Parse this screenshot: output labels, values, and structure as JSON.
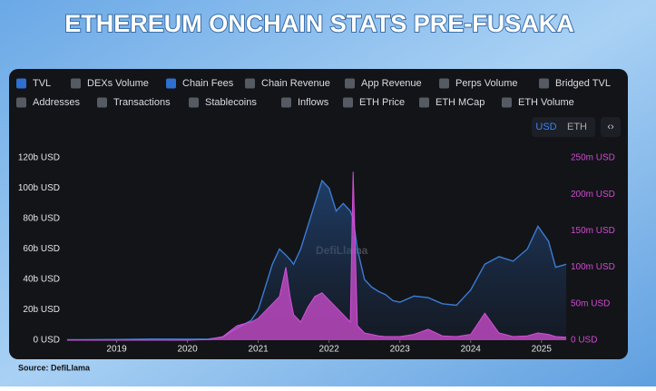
{
  "chart_data": {
    "type": "area",
    "title": "ETHEREUM ONCHAIN STATS PRE-FUSAKA",
    "watermark": "DefiLlama",
    "source": "Source: DefiLlama",
    "toggles": [
      {
        "label": "TVL",
        "checked": true
      },
      {
        "label": "DEXs Volume",
        "checked": false
      },
      {
        "label": "Chain Fees",
        "checked": true
      },
      {
        "label": "Chain Revenue",
        "checked": false
      },
      {
        "label": "App Revenue",
        "checked": false
      },
      {
        "label": "Perps Volume",
        "checked": false
      },
      {
        "label": "Bridged TVL",
        "checked": false
      },
      {
        "label": "Addresses",
        "checked": false
      },
      {
        "label": "Transactions",
        "checked": false
      },
      {
        "label": "Stablecoins",
        "checked": false
      },
      {
        "label": "Inflows",
        "checked": false
      },
      {
        "label": "ETH Price",
        "checked": false
      },
      {
        "label": "ETH MCap",
        "checked": false
      },
      {
        "label": "ETH Volume",
        "checked": false
      }
    ],
    "currency_buttons": [
      "USD",
      "ETH"
    ],
    "x": [
      2018.3,
      2018.5,
      2019,
      2019.5,
      2020,
      2020.3,
      2020.5,
      2020.7,
      2020.9,
      2021,
      2021.1,
      2021.2,
      2021.3,
      2021.39,
      2021.45,
      2021.5,
      2021.6,
      2021.7,
      2021.8,
      2021.9,
      2022,
      2022.1,
      2022.2,
      2022.3,
      2022.34,
      2022.4,
      2022.5,
      2022.6,
      2022.7,
      2022.8,
      2022.9,
      2023,
      2023.2,
      2023.4,
      2023.6,
      2023.8,
      2024,
      2024.2,
      2024.4,
      2024.6,
      2024.8,
      2024.95,
      2025.1,
      2025.2,
      2025.35
    ],
    "series": [
      {
        "name": "TVL",
        "color": "#3b7bd4",
        "values": [
          0.3,
          0.3,
          0.5,
          0.8,
          0.7,
          0.8,
          2,
          8,
          13,
          20,
          35,
          50,
          60,
          56,
          53,
          50,
          60,
          75,
          90,
          105,
          100,
          85,
          90,
          85,
          80,
          60,
          40,
          35,
          32,
          30,
          26,
          25,
          29,
          28,
          24,
          23,
          33,
          50,
          55,
          52,
          60,
          75,
          65,
          48,
          50
        ]
      },
      {
        "name": "Chain Fees",
        "color": "#d24fd4",
        "axis": "y2",
        "values": [
          0,
          0,
          0,
          0,
          0,
          1,
          5,
          20,
          25,
          30,
          40,
          50,
          60,
          100,
          60,
          35,
          25,
          45,
          60,
          65,
          55,
          45,
          35,
          25,
          231,
          20,
          10,
          8,
          6,
          5,
          5,
          5,
          8,
          15,
          6,
          5,
          8,
          37,
          10,
          5,
          6,
          10,
          8,
          5,
          4
        ]
      }
    ],
    "xlim": [
      2018.25,
      2025.4
    ],
    "xticks": [
      2019,
      2020,
      2021,
      2022,
      2023,
      2024,
      2025
    ],
    "ylim": [
      0,
      120
    ],
    "yticks": [
      {
        "value": 0,
        "label": "0 USD"
      },
      {
        "value": 20,
        "label": "20b USD"
      },
      {
        "value": 40,
        "label": "40b USD"
      },
      {
        "value": 60,
        "label": "60b USD"
      },
      {
        "value": 80,
        "label": "80b USD"
      },
      {
        "value": 100,
        "label": "100b USD"
      },
      {
        "value": 120,
        "label": "120b USD"
      }
    ],
    "y2lim": [
      0,
      250
    ],
    "y2ticks": [
      {
        "value": 0,
        "label": "0 USD"
      },
      {
        "value": 50,
        "label": "50m USD"
      },
      {
        "value": 100,
        "label": "100m USD"
      },
      {
        "value": 150,
        "label": "150m USD"
      },
      {
        "value": 200,
        "label": "200m USD"
      },
      {
        "value": 250,
        "label": "250m USD"
      }
    ]
  }
}
